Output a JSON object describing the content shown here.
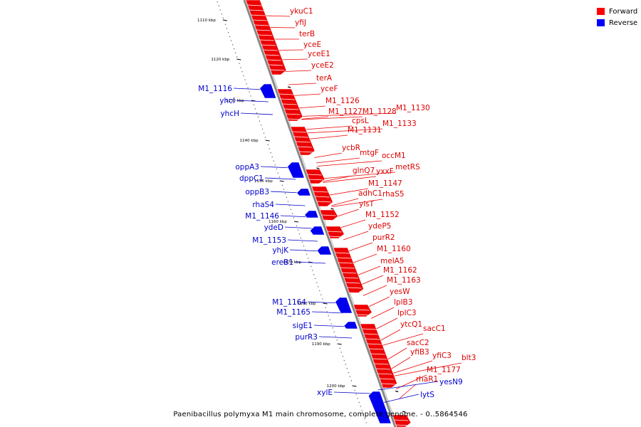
{
  "caption": "Paenibacillus polymyxa M1 main chromosome, complete genome. - 0..5864546",
  "legend": [
    {
      "label": "Forward",
      "color": "#ff0000"
    },
    {
      "label": "Reverse",
      "color": "#0000ff"
    }
  ],
  "colors": {
    "forward": "#ee0000",
    "reverse": "#0000ee",
    "backbone": "#888888"
  },
  "ticks": [
    {
      "label": "1110 kbp",
      "pos": 1110
    },
    {
      "label": "1120 kbp",
      "pos": 1120
    },
    {
      "label": "1130 kbp",
      "pos": 1130
    },
    {
      "label": "1140 kbp",
      "pos": 1140
    },
    {
      "label": "1150 kbp",
      "pos": 1150
    },
    {
      "label": "1160 kbp",
      "pos": 1160
    },
    {
      "label": "1170 kbp",
      "pos": 1170
    },
    {
      "label": "1180 kbp",
      "pos": 1180
    },
    {
      "label": "1190 kbp",
      "pos": 1190
    },
    {
      "label": "1200 kbp",
      "pos": 1200
    }
  ],
  "forward_genes": [
    "ykuC1",
    "yfiJ",
    "terB",
    "yceE",
    "yceE1",
    "yceE2",
    "terA",
    "yceF",
    "M1_1126",
    "M1_1127",
    "M1_1128",
    "M1_1130",
    "cpsL",
    "M1_1131",
    "M1_1133",
    "ycbR",
    "mtgF",
    "occM1",
    "glnQ7",
    "yxxF",
    "metRS",
    "M1_1147",
    "adhC1",
    "rhaS5",
    "yisT",
    "M1_1152",
    "ydeP5",
    "purR2",
    "M1_1160",
    "melA5",
    "M1_1162",
    "M1_1163",
    "yesW",
    "lplB3",
    "lplC3",
    "ytcQ1",
    "sacC1",
    "sacC2",
    "yfiB3",
    "yfiC3",
    "blt3",
    "M1_1177",
    "rhaR1"
  ],
  "reverse_genes": [
    "M1_1116",
    "yhcI",
    "yhcH",
    "oppA3",
    "dppC1",
    "oppB3",
    "rhaS4",
    "M1_1146",
    "ydeD",
    "M1_1153",
    "yhjK",
    "ereB1",
    "M1_1164",
    "M1_1165",
    "sigE1",
    "purR3",
    "xylE",
    "yesN9",
    "lytS"
  ]
}
